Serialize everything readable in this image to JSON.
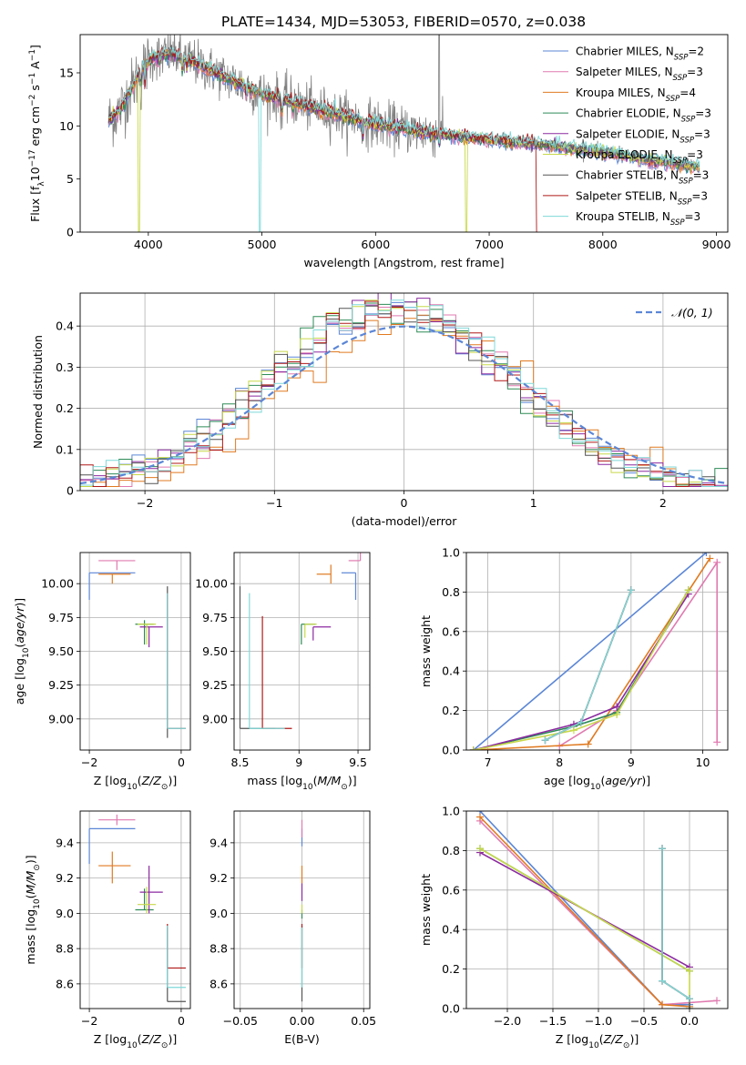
{
  "title": "PLATE=1434, MJD=53053, FIBERID=0570, z=0.038",
  "colors": {
    "Chabrier MILES": "#5b86d6",
    "Salpeter MILES": "#e07ab0",
    "Kroupa MILES": "#e07a20",
    "Chabrier ELODIE": "#2e8b57",
    "Salpeter ELODIE": "#8b2aa0",
    "Kroupa ELODIE": "#c8d84a",
    "Chabrier STELIB": "#555555",
    "Salpeter STELIB": "#b01818",
    "Kroupa STELIB": "#7fd8d8",
    "data": "#808080",
    "normal": "#5b86d6"
  },
  "chart_data": [
    {
      "id": "spectrum",
      "type": "line",
      "xlabel": "wavelength [Angstrom, rest frame]",
      "ylabel": "Flux [f_λ 10^-17 erg cm^-2 s^-1 A^-1]",
      "xlim": [
        3400,
        9100
      ],
      "ylim": [
        0,
        18.6
      ],
      "xticks": [
        4000,
        5000,
        6000,
        7000,
        8000,
        9000
      ],
      "yticks": [
        0,
        5,
        10,
        15
      ],
      "legend_position": "upper right",
      "legend": [
        {
          "name": "Chabrier MILES",
          "nssp": "2"
        },
        {
          "name": "Salpeter MILES",
          "nssp": "3"
        },
        {
          "name": "Kroupa MILES",
          "nssp": "4"
        },
        {
          "name": "Chabrier ELODIE",
          "nssp": "3"
        },
        {
          "name": "Salpeter ELODIE",
          "nssp": "3"
        },
        {
          "name": "Kroupa ELODIE",
          "nssp": "3"
        },
        {
          "name": "Chabrier STELIB",
          "nssp": "3"
        },
        {
          "name": "Salpeter STELIB",
          "nssp": "3"
        },
        {
          "name": "Kroupa STELIB",
          "nssp": "3"
        }
      ],
      "continuum_wavelength": [
        3650,
        3750,
        3850,
        3950,
        4050,
        4200,
        4400,
        4600,
        4800,
        5000,
        5200,
        5400,
        5600,
        5800,
        6000,
        6200,
        6400,
        6600,
        6800,
        7000,
        7200,
        7400,
        7600,
        7800,
        8000,
        8200,
        8400,
        8600,
        8850
      ],
      "continuum_flux": [
        10.5,
        11.5,
        13.5,
        15.5,
        16.5,
        16.8,
        16.0,
        15.0,
        14.0,
        13.0,
        12.5,
        11.8,
        11.3,
        10.7,
        10.2,
        9.8,
        9.5,
        9.2,
        8.9,
        8.7,
        8.5,
        8.3,
        8.1,
        7.8,
        7.6,
        7.2,
        6.8,
        6.5,
        6.1
      ],
      "model_dropouts": [
        {
          "series": "Kroupa ELODIE",
          "wavelength": 3920
        },
        {
          "series": "Kroupa STELIB",
          "wavelength": 4980
        },
        {
          "series": "Kroupa ELODIE",
          "wavelength": 6800
        },
        {
          "series": "Salpeter STELIB",
          "wavelength": 7420
        }
      ],
      "data_spike_wavelength": 6560
    },
    {
      "id": "residuals",
      "type": "histogram",
      "xlabel": "(data-model)/error",
      "ylabel": "Normed distribution",
      "xlim": [
        -2.5,
        2.5
      ],
      "ylim": [
        0,
        0.48
      ],
      "xticks": [
        -2,
        -1,
        0,
        1,
        2
      ],
      "yticks": [
        0.0,
        0.1,
        0.2,
        0.3,
        0.4
      ],
      "grid": true,
      "legend": "𝒩(0, 1)",
      "legend_position": "upper right",
      "bin_width": 0.1,
      "bin_start": -2.5,
      "normal_pdf": {
        "mean": 0,
        "sigma": 1
      }
    },
    {
      "id": "age_vs_Z",
      "type": "scatter",
      "xlabel": "Z [log10(Z/Z⊙)]",
      "ylabel": "age  [log10(age/yr)]",
      "xlim": [
        -2.2,
        0.2
      ],
      "ylim": [
        8.77,
        10.23
      ],
      "xticks": [
        -2,
        0
      ],
      "yticks": [
        9.0,
        9.25,
        9.5,
        9.75,
        10.0
      ],
      "ytick_labels": [
        "9.00",
        "9.25",
        "9.50",
        "9.75",
        "10.00"
      ],
      "grid": true,
      "points": [
        {
          "series": "Chabrier MILES",
          "x": -2.0,
          "y": 10.08,
          "xerr": [
            0.0,
            1.0
          ],
          "yerr": [
            0.2,
            0.0
          ]
        },
        {
          "series": "Salpeter MILES",
          "x": -1.4,
          "y": 10.17,
          "xerr": [
            0.4,
            0.4
          ],
          "yerr": [
            0.07,
            0.0
          ]
        },
        {
          "series": "Kroupa MILES",
          "x": -1.5,
          "y": 10.07,
          "xerr": [
            0.3,
            0.4
          ],
          "yerr": [
            0.07,
            0.0
          ]
        },
        {
          "series": "Chabrier ELODIE",
          "x": -0.8,
          "y": 9.7,
          "xerr": [
            0.2,
            0.2
          ],
          "yerr": [
            0.15,
            0.03
          ]
        },
        {
          "series": "Salpeter ELODIE",
          "x": -0.7,
          "y": 9.68,
          "xerr": [
            0.2,
            0.3
          ],
          "yerr": [
            0.15,
            0.0
          ]
        },
        {
          "series": "Kroupa ELODIE",
          "x": -0.75,
          "y": 9.7,
          "xerr": [
            0.2,
            0.2
          ],
          "yerr": [
            0.15,
            0.0
          ]
        },
        {
          "series": "Chabrier STELIB",
          "x": -0.3,
          "y": 8.93,
          "xerr": [
            0.0,
            0.0
          ],
          "yerr": [
            0.07,
            1.05
          ]
        },
        {
          "series": "Salpeter STELIB",
          "x": -0.3,
          "y": 8.93,
          "xerr": [
            0.0,
            0.4
          ],
          "yerr": [
            0.0,
            1.0
          ]
        },
        {
          "series": "Kroupa STELIB",
          "x": -0.3,
          "y": 8.93,
          "xerr": [
            0.0,
            0.4
          ],
          "yerr": [
            0.0,
            1.0
          ]
        }
      ]
    },
    {
      "id": "age_vs_mass",
      "type": "scatter",
      "xlabel": "mass [log10(M/M⊙)]",
      "ylabel": "",
      "xlim": [
        8.45,
        9.6
      ],
      "ylim": [
        8.77,
        10.23
      ],
      "xticks": [
        8.5,
        9.0,
        9.5
      ],
      "yticks": [
        9.0,
        9.25,
        9.5,
        9.75,
        10.0
      ],
      "ytick_labels": [
        "9.00",
        "9.25",
        "9.50",
        "9.75",
        "10.00"
      ],
      "grid": true,
      "points": [
        {
          "series": "Chabrier MILES",
          "x": 9.48,
          "y": 10.08,
          "xerr": [
            0.12,
            0.0
          ],
          "yerr": [
            0.2,
            0.0
          ]
        },
        {
          "series": "Salpeter MILES",
          "x": 9.52,
          "y": 10.17,
          "xerr": [
            0.1,
            0.0
          ],
          "yerr": [
            0.0,
            0.07
          ]
        },
        {
          "series": "Kroupa MILES",
          "x": 9.27,
          "y": 10.07,
          "xerr": [
            0.12,
            0.0
          ],
          "yerr": [
            0.07,
            0.07
          ]
        },
        {
          "series": "Chabrier ELODIE",
          "x": 9.02,
          "y": 9.7,
          "xerr": [
            0.0,
            0.12
          ],
          "yerr": [
            0.15,
            0.0
          ]
        },
        {
          "series": "Salpeter ELODIE",
          "x": 9.12,
          "y": 9.68,
          "xerr": [
            0.0,
            0.15
          ],
          "yerr": [
            0.1,
            0.0
          ]
        },
        {
          "series": "Kroupa ELODIE",
          "x": 9.05,
          "y": 9.7,
          "xerr": [
            0.0,
            0.1
          ],
          "yerr": [
            0.1,
            0.0
          ]
        },
        {
          "series": "Chabrier STELIB",
          "x": 8.5,
          "y": 8.93,
          "xerr": [
            0.0,
            0.3
          ],
          "yerr": [
            0.0,
            1.05
          ]
        },
        {
          "series": "Salpeter STELIB",
          "x": 8.69,
          "y": 8.93,
          "xerr": [
            0.0,
            0.25
          ],
          "yerr": [
            0.0,
            0.83
          ]
        },
        {
          "series": "Kroupa STELIB",
          "x": 8.58,
          "y": 8.93,
          "xerr": [
            0.0,
            0.3
          ],
          "yerr": [
            0.0,
            1.0
          ]
        }
      ]
    },
    {
      "id": "weight_vs_age",
      "type": "line",
      "xlabel": "age  [log10(age/yr)]",
      "ylabel": "mass weight",
      "xlim": [
        6.7,
        10.35
      ],
      "ylim": [
        0,
        1.0
      ],
      "xticks": [
        7,
        8,
        9,
        10
      ],
      "yticks": [
        0.0,
        0.2,
        0.4,
        0.6,
        0.8,
        1.0
      ],
      "grid": true,
      "series": [
        {
          "name": "Chabrier MILES",
          "x": [
            6.8,
            10.05
          ],
          "y": [
            0.0,
            1.0
          ]
        },
        {
          "name": "Salpeter MILES",
          "x": [
            8.0,
            8.8,
            10.2,
            10.2
          ],
          "y": [
            0.02,
            0.2,
            0.95,
            0.04
          ]
        },
        {
          "name": "Kroupa MILES",
          "x": [
            6.8,
            8.4,
            10.1
          ],
          "y": [
            0.0,
            0.03,
            0.97
          ]
        },
        {
          "name": "Chabrier ELODIE",
          "x": [
            6.8,
            8.2,
            8.8,
            9.8
          ],
          "y": [
            0.0,
            0.12,
            0.19,
            0.81
          ]
        },
        {
          "name": "Salpeter ELODIE",
          "x": [
            6.8,
            8.2,
            8.8,
            9.8
          ],
          "y": [
            0.0,
            0.13,
            0.22,
            0.79
          ]
        },
        {
          "name": "Kroupa ELODIE",
          "x": [
            6.8,
            8.2,
            8.8,
            9.8
          ],
          "y": [
            0.0,
            0.1,
            0.18,
            0.81
          ]
        },
        {
          "name": "Chabrier STELIB",
          "x": [
            7.8,
            8.3,
            9.0
          ],
          "y": [
            0.05,
            0.14,
            0.81
          ]
        },
        {
          "name": "Salpeter STELIB",
          "x": [
            7.8,
            8.3,
            9.0
          ],
          "y": [
            0.05,
            0.14,
            0.81
          ]
        },
        {
          "name": "Kroupa STELIB",
          "x": [
            7.8,
            8.3,
            9.0
          ],
          "y": [
            0.05,
            0.14,
            0.81
          ]
        }
      ]
    },
    {
      "id": "mass_vs_Z",
      "type": "scatter",
      "xlabel": "Z [log10(Z/Z⊙)]",
      "ylabel": "mass [log10(M/M⊙)]",
      "xlim": [
        -2.2,
        0.2
      ],
      "ylim": [
        8.46,
        9.58
      ],
      "xticks": [
        -2,
        0
      ],
      "yticks": [
        8.6,
        8.8,
        9.0,
        9.2,
        9.4
      ],
      "ytick_labels": [
        "8.6",
        "8.8",
        "9.0",
        "9.2",
        "9.4"
      ],
      "grid": true,
      "points": [
        {
          "series": "Chabrier MILES",
          "x": -2.0,
          "y": 9.48,
          "xerr": [
            0.0,
            1.0
          ],
          "yerr": [
            0.2,
            0.0
          ]
        },
        {
          "series": "Salpeter MILES",
          "x": -1.4,
          "y": 9.53,
          "xerr": [
            0.4,
            0.4
          ],
          "yerr": [
            0.03,
            0.03
          ]
        },
        {
          "series": "Kroupa MILES",
          "x": -1.5,
          "y": 9.27,
          "xerr": [
            0.3,
            0.4
          ],
          "yerr": [
            0.1,
            0.08
          ]
        },
        {
          "series": "Chabrier ELODIE",
          "x": -0.8,
          "y": 9.02,
          "xerr": [
            0.2,
            0.2
          ],
          "yerr": [
            0.0,
            0.12
          ]
        },
        {
          "series": "Salpeter ELODIE",
          "x": -0.7,
          "y": 9.12,
          "xerr": [
            0.2,
            0.3
          ],
          "yerr": [
            0.12,
            0.15
          ]
        },
        {
          "series": "Kroupa ELODIE",
          "x": -0.75,
          "y": 9.05,
          "xerr": [
            0.2,
            0.2
          ],
          "yerr": [
            0.05,
            0.1
          ]
        },
        {
          "series": "Chabrier STELIB",
          "x": -0.3,
          "y": 8.5,
          "xerr": [
            0.0,
            0.4
          ],
          "yerr": [
            0.0,
            0.42
          ]
        },
        {
          "series": "Salpeter STELIB",
          "x": -0.3,
          "y": 8.69,
          "xerr": [
            0.0,
            0.4
          ],
          "yerr": [
            0.0,
            0.25
          ]
        },
        {
          "series": "Kroupa STELIB",
          "x": -0.3,
          "y": 8.58,
          "xerr": [
            0.0,
            0.4
          ],
          "yerr": [
            0.0,
            0.35
          ]
        }
      ]
    },
    {
      "id": "mass_vs_EBV",
      "type": "scatter",
      "xlabel": "E(B-V)",
      "ylabel": "",
      "xlim": [
        -0.055,
        0.055
      ],
      "ylim": [
        8.46,
        9.58
      ],
      "xticks": [
        -0.05,
        0.0,
        0.05
      ],
      "xtick_labels": [
        "−0.05",
        "0.00",
        "0.05"
      ],
      "yticks": [
        8.6,
        8.8,
        9.0,
        9.2,
        9.4
      ],
      "ytick_labels": [
        "8.6",
        "8.8",
        "9.0",
        "9.2",
        "9.4"
      ],
      "grid": true,
      "points": [
        {
          "series": "Chabrier MILES",
          "x": 0.0,
          "y": 9.48,
          "xerr": [
            0,
            0
          ],
          "yerr": [
            0.1,
            0.0
          ]
        },
        {
          "series": "Salpeter MILES",
          "x": 0.0,
          "y": 9.53,
          "xerr": [
            0,
            0
          ],
          "yerr": [
            0.1,
            0.0
          ]
        },
        {
          "series": "Kroupa MILES",
          "x": 0.0,
          "y": 9.27,
          "xerr": [
            0,
            0
          ],
          "yerr": [
            0.1,
            0.0
          ]
        },
        {
          "series": "Chabrier ELODIE",
          "x": 0.0,
          "y": 9.02,
          "xerr": [
            0,
            0
          ],
          "yerr": [
            0.05,
            0.0
          ]
        },
        {
          "series": "Salpeter ELODIE",
          "x": 0.0,
          "y": 9.12,
          "xerr": [
            0,
            0
          ],
          "yerr": [
            0.05,
            0.05
          ]
        },
        {
          "series": "Kroupa ELODIE",
          "x": 0.0,
          "y": 9.05,
          "xerr": [
            0,
            0
          ],
          "yerr": [
            0.05,
            0.0
          ]
        },
        {
          "series": "Chabrier STELIB",
          "x": 0.0,
          "y": 8.5,
          "xerr": [
            0,
            0
          ],
          "yerr": [
            0.0,
            0.43
          ]
        },
        {
          "series": "Salpeter STELIB",
          "x": 0.0,
          "y": 8.69,
          "xerr": [
            0,
            0
          ],
          "yerr": [
            0.0,
            0.25
          ]
        },
        {
          "series": "Kroupa STELIB",
          "x": 0.0,
          "y": 8.58,
          "xerr": [
            0,
            0
          ],
          "yerr": [
            0.0,
            0.34
          ]
        }
      ]
    },
    {
      "id": "weight_vs_Z",
      "type": "line",
      "xlabel": "Z [log10(Z/Z⊙)]",
      "ylabel": "mass weight",
      "xlim": [
        -2.45,
        0.42
      ],
      "ylim": [
        0,
        1.0
      ],
      "xticks": [
        -2.0,
        -1.5,
        -1.0,
        -0.5,
        0.0
      ],
      "xtick_labels": [
        "−2.0",
        "−1.5",
        "−1.0",
        "−0.5",
        "0.0"
      ],
      "yticks": [
        0.0,
        0.2,
        0.4,
        0.6,
        0.8,
        1.0
      ],
      "grid": true,
      "series": [
        {
          "name": "Chabrier MILES",
          "x": [
            -2.3,
            -0.3,
            0.0
          ],
          "y": [
            1.0,
            0.02,
            0.02
          ]
        },
        {
          "name": "Salpeter MILES",
          "x": [
            -2.3,
            -0.3,
            0.3
          ],
          "y": [
            0.95,
            0.02,
            0.04
          ]
        },
        {
          "name": "Kroupa MILES",
          "x": [
            -2.3,
            -0.3,
            0.0
          ],
          "y": [
            0.97,
            0.02,
            0.01
          ]
        },
        {
          "name": "Chabrier ELODIE",
          "x": [
            -2.3,
            0.0
          ],
          "y": [
            0.81,
            0.19
          ]
        },
        {
          "name": "Salpeter ELODIE",
          "x": [
            -2.3,
            0.0
          ],
          "y": [
            0.79,
            0.21
          ]
        },
        {
          "name": "Kroupa ELODIE",
          "x": [
            -2.3,
            0.0,
            0.0
          ],
          "y": [
            0.81,
            0.19,
            0.0
          ]
        },
        {
          "name": "Chabrier STELIB",
          "x": [
            -0.3,
            -0.3,
            0.0,
            0.0
          ],
          "y": [
            0.81,
            0.14,
            0.05,
            0.0
          ]
        },
        {
          "name": "Salpeter STELIB",
          "x": [
            -0.3,
            -0.3,
            0.0
          ],
          "y": [
            0.81,
            0.14,
            0.05
          ]
        },
        {
          "name": "Kroupa STELIB",
          "x": [
            -0.3,
            -0.3,
            0.0
          ],
          "y": [
            0.81,
            0.14,
            0.05
          ]
        }
      ]
    }
  ]
}
